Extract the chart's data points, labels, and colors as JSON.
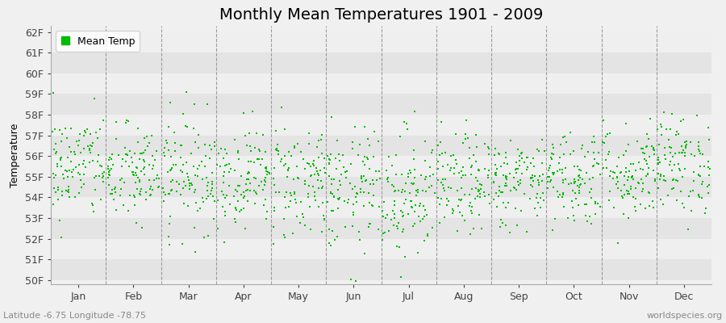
{
  "title": "Monthly Mean Temperatures 1901 - 2009",
  "ylabel": "Temperature",
  "xlabel_bottom": "Latitude -6.75 Longitude -78.75",
  "watermark": "worldspecies.org",
  "legend_label": "Mean Temp",
  "y_ticks": [
    50,
    51,
    52,
    53,
    54,
    55,
    56,
    57,
    58,
    59,
    60,
    61,
    62
  ],
  "y_tick_labels": [
    "50F",
    "51F",
    "52F",
    "53F",
    "54F",
    "55F",
    "56F",
    "57F",
    "58F",
    "59F",
    "60F",
    "61F",
    "62F"
  ],
  "ylim": [
    49.8,
    62.3
  ],
  "months": [
    "Jan",
    "Feb",
    "Mar",
    "Apr",
    "May",
    "Jun",
    "Jul",
    "Aug",
    "Sep",
    "Oct",
    "Nov",
    "Dec"
  ],
  "dot_color": "#00BB00",
  "dot_size": 2,
  "background_color": "#F0F0F0",
  "stripe_color_dark": "#E4E4E4",
  "stripe_color_light": "#EFEFEF",
  "title_fontsize": 14,
  "axis_fontsize": 9,
  "tick_fontsize": 9,
  "n_years": 109,
  "seed": 42,
  "month_means": [
    55.5,
    55.1,
    55.2,
    55.0,
    54.8,
    54.3,
    54.2,
    54.6,
    54.8,
    55.0,
    55.2,
    55.6
  ],
  "month_stds": [
    1.3,
    1.2,
    1.4,
    1.2,
    1.5,
    1.5,
    1.6,
    1.2,
    1.1,
    1.2,
    1.2,
    1.2
  ]
}
